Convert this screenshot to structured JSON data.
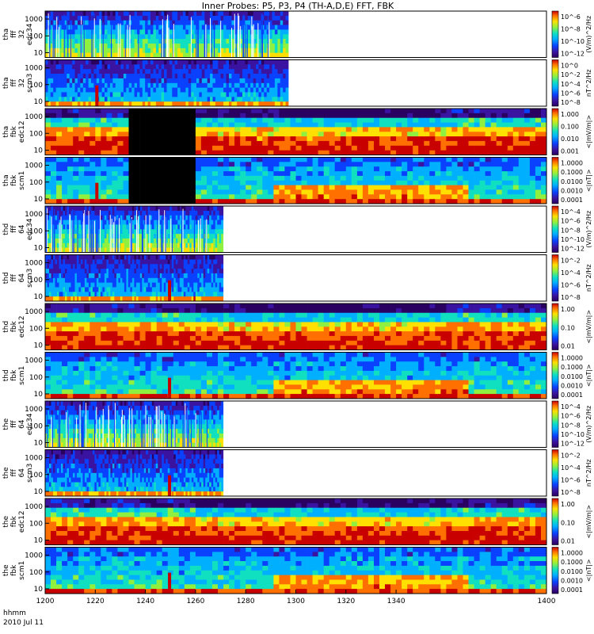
{
  "title": "Inner Probes: P5, P3, P4 (TH-A,D,E) FFT, FBK",
  "footer": {
    "time_label": "hhmm",
    "date_label": "2010 Jul 11"
  },
  "x_ticks": [
    "1200",
    "1220",
    "1240",
    "1260",
    "1280",
    "1300",
    "1320",
    "1340",
    "1400"
  ],
  "chart_data": [
    {
      "type": "heatmap",
      "probe": "tha",
      "label_lines": [
        "tha",
        "fff",
        "32",
        "edc34"
      ],
      "y_ticks": [
        "1000",
        "100",
        "10"
      ],
      "colorbar_ticks": [
        "10^-6",
        "10^-8",
        "10^-10",
        "10^-12"
      ],
      "colorbar_unit": "(V/m)^2/Hz",
      "data_end_min": 97,
      "style": "burst"
    },
    {
      "type": "heatmap",
      "probe": "tha",
      "label_lines": [
        "tha",
        "fff",
        "32",
        "scm3"
      ],
      "y_ticks": [
        "1000",
        "100",
        "10"
      ],
      "colorbar_ticks": [
        "10^0",
        "10^-2",
        "10^-4",
        "10^-6",
        "10^-8"
      ],
      "colorbar_unit": "nT^2/Hz",
      "data_end_min": 97,
      "style": "scm"
    },
    {
      "type": "heatmap",
      "probe": "tha",
      "label_lines": [
        "tha",
        "fbk",
        "edc12"
      ],
      "y_ticks": [
        "1000",
        "100",
        "10"
      ],
      "colorbar_ticks": [
        "1.000",
        "0.100",
        "0.010",
        "0.001"
      ],
      "colorbar_unit": "<|mV/m|>",
      "data_end_min": 200,
      "gap_min": [
        33,
        59
      ],
      "style": "fbk_e"
    },
    {
      "type": "heatmap",
      "probe": "tha",
      "label_lines": [
        "tha",
        "fbk",
        "scm1"
      ],
      "y_ticks": [
        "1000",
        "100",
        "10"
      ],
      "colorbar_ticks": [
        "1.0000",
        "0.1000",
        "0.0100",
        "0.0010",
        "0.0001"
      ],
      "colorbar_unit": "<|nT|>",
      "data_end_min": 200,
      "gap_min": [
        33,
        59
      ],
      "style": "fbk_b"
    },
    {
      "type": "heatmap",
      "probe": "thd",
      "label_lines": [
        "thd",
        "fff",
        "64",
        "edc34"
      ],
      "y_ticks": [
        "1000",
        "100",
        "10"
      ],
      "colorbar_ticks": [
        "10^-4",
        "10^-6",
        "10^-8",
        "10^-10",
        "10^-12"
      ],
      "colorbar_unit": "(V/m)^2/Hz",
      "data_end_min": 71,
      "style": "burst"
    },
    {
      "type": "heatmap",
      "probe": "thd",
      "label_lines": [
        "thd",
        "fff",
        "64",
        "scm3"
      ],
      "y_ticks": [
        "1000",
        "100",
        "10"
      ],
      "colorbar_ticks": [
        "10^-2",
        "10^-4",
        "10^-6",
        "10^-8"
      ],
      "colorbar_unit": "nT^2/Hz",
      "data_end_min": 71,
      "style": "scm"
    },
    {
      "type": "heatmap",
      "probe": "thd",
      "label_lines": [
        "thd",
        "fbk",
        "edc12"
      ],
      "y_ticks": [
        "1000",
        "100",
        "10"
      ],
      "colorbar_ticks": [
        "1.00",
        "0.10",
        "0.01"
      ],
      "colorbar_unit": "<|mV/m|>",
      "data_end_min": 200,
      "style": "fbk_e"
    },
    {
      "type": "heatmap",
      "probe": "thd",
      "label_lines": [
        "thd",
        "fbk",
        "scm1"
      ],
      "y_ticks": [
        "1000",
        "100",
        "10"
      ],
      "colorbar_ticks": [
        "1.0000",
        "0.1000",
        "0.0100",
        "0.0010",
        "0.0001"
      ],
      "colorbar_unit": "<|nT|>",
      "data_end_min": 200,
      "style": "fbk_b"
    },
    {
      "type": "heatmap",
      "probe": "the",
      "label_lines": [
        "the",
        "fff",
        "64",
        "edc34"
      ],
      "y_ticks": [
        "1000",
        "100",
        "10"
      ],
      "colorbar_ticks": [
        "10^-4",
        "10^-6",
        "10^-8",
        "10^-10",
        "10^-12"
      ],
      "colorbar_unit": "(V/m)^2/Hz",
      "data_end_min": 71,
      "style": "burst"
    },
    {
      "type": "heatmap",
      "probe": "the",
      "label_lines": [
        "the",
        "fff",
        "64",
        "scm3"
      ],
      "y_ticks": [
        "1000",
        "100",
        "10"
      ],
      "colorbar_ticks": [
        "10^-2",
        "10^-4",
        "10^-6",
        "10^-8"
      ],
      "colorbar_unit": "nT^2/Hz",
      "data_end_min": 71,
      "style": "scm"
    },
    {
      "type": "heatmap",
      "probe": "the",
      "label_lines": [
        "the",
        "fbk",
        "edc12"
      ],
      "y_ticks": [
        "1000",
        "100",
        "10"
      ],
      "colorbar_ticks": [
        "1.00",
        "0.10",
        "0.01"
      ],
      "colorbar_unit": "<|mV/m|>",
      "data_end_min": 200,
      "style": "fbk_e"
    },
    {
      "type": "heatmap",
      "probe": "the",
      "label_lines": [
        "the",
        "fbk",
        "scm1"
      ],
      "y_ticks": [
        "1000",
        "100",
        "10"
      ],
      "colorbar_ticks": [
        "1.0000",
        "0.1000",
        "0.0100",
        "0.0010",
        "0.0001"
      ],
      "colorbar_unit": "<|nT|>",
      "data_end_min": 200,
      "style": "fbk_b"
    }
  ]
}
